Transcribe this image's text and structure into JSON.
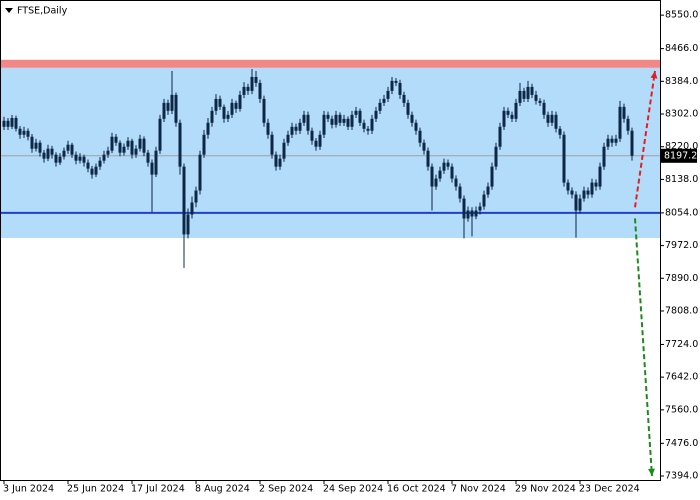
{
  "chart_data": {
    "type": "candlestick",
    "title": "FTSE,Daily",
    "categories": [
      "3 Jun 2024",
      null,
      null,
      null,
      null,
      null,
      null,
      null,
      null,
      null,
      null,
      null,
      null,
      null,
      null,
      null,
      "25 Jun 2024",
      null,
      null,
      null,
      null,
      null,
      null,
      null,
      null,
      null,
      null,
      null,
      null,
      null,
      null,
      null,
      "17 Jul 2024",
      null,
      null,
      null,
      null,
      null,
      null,
      null,
      null,
      null,
      null,
      null,
      null,
      null,
      null,
      null,
      "8 Aug 2024",
      null,
      null,
      null,
      null,
      null,
      null,
      null,
      null,
      null,
      null,
      null,
      null,
      null,
      null,
      null,
      "2 Sep 2024",
      null,
      null,
      null,
      null,
      null,
      null,
      null,
      null,
      null,
      null,
      null,
      null,
      null,
      null,
      null,
      "24 Sep 2024",
      null,
      null,
      null,
      null,
      null,
      null,
      null,
      null,
      null,
      null,
      null,
      null,
      null,
      null,
      null,
      "16 Oct 2024",
      null,
      null,
      null,
      null,
      null,
      null,
      null,
      null,
      null,
      null,
      null,
      null,
      null,
      null,
      null,
      "7 Nov 2024",
      null,
      null,
      null,
      null,
      null,
      null,
      null,
      null,
      null,
      null,
      null,
      null,
      null,
      null,
      null,
      "29 Nov 2024",
      null,
      null,
      null,
      null,
      null,
      null,
      null,
      null,
      null,
      null,
      null,
      null,
      null,
      null,
      null,
      "23 Dec 2024",
      null,
      null,
      null,
      null,
      null,
      null,
      null,
      null,
      null,
      null,
      null,
      null,
      null
    ],
    "ohlc": [
      [
        8270,
        8295,
        8262,
        8285
      ],
      [
        8285,
        8292,
        8262,
        8270
      ],
      [
        8270,
        8300,
        8264,
        8292
      ],
      [
        8292,
        8298,
        8258,
        8265
      ],
      [
        8265,
        8272,
        8240,
        8250
      ],
      [
        8250,
        8270,
        8242,
        8260
      ],
      [
        8260,
        8266,
        8236,
        8245
      ],
      [
        8245,
        8252,
        8205,
        8215
      ],
      [
        8215,
        8240,
        8208,
        8230
      ],
      [
        8230,
        8236,
        8195,
        8205
      ],
      [
        8205,
        8212,
        8180,
        8190
      ],
      [
        8190,
        8225,
        8184,
        8215
      ],
      [
        8215,
        8222,
        8190,
        8200
      ],
      [
        8200,
        8206,
        8170,
        8180
      ],
      [
        8180,
        8204,
        8174,
        8195
      ],
      [
        8195,
        8218,
        8188,
        8210
      ],
      [
        8210,
        8235,
        8202,
        8225
      ],
      [
        8225,
        8230,
        8192,
        8200
      ],
      [
        8200,
        8208,
        8176,
        8185
      ],
      [
        8185,
        8204,
        8178,
        8195
      ],
      [
        8195,
        8200,
        8170,
        8180
      ],
      [
        8180,
        8188,
        8156,
        8165
      ],
      [
        8165,
        8172,
        8140,
        8150
      ],
      [
        8150,
        8178,
        8144,
        8170
      ],
      [
        8170,
        8194,
        8162,
        8185
      ],
      [
        8185,
        8210,
        8178,
        8200
      ],
      [
        8200,
        8220,
        8192,
        8210
      ],
      [
        8210,
        8255,
        8204,
        8245
      ],
      [
        8245,
        8252,
        8222,
        8230
      ],
      [
        8230,
        8236,
        8196,
        8205
      ],
      [
        8205,
        8228,
        8198,
        8220
      ],
      [
        8220,
        8244,
        8212,
        8235
      ],
      [
        8235,
        8240,
        8190,
        8200
      ],
      [
        8200,
        8224,
        8192,
        8215
      ],
      [
        8215,
        8250,
        8208,
        8240
      ],
      [
        8240,
        8246,
        8196,
        8205
      ],
      [
        8205,
        8212,
        8170,
        8180
      ],
      [
        8180,
        8188,
        8056,
        8150
      ],
      [
        8150,
        8220,
        8144,
        8210
      ],
      [
        8210,
        8300,
        8202,
        8290
      ],
      [
        8290,
        8340,
        8282,
        8330
      ],
      [
        8330,
        8338,
        8300,
        8310
      ],
      [
        8310,
        8410,
        8302,
        8350
      ],
      [
        8350,
        8356,
        8270,
        8280
      ],
      [
        8280,
        8288,
        8150,
        8170
      ],
      [
        8170,
        8178,
        7916,
        8000
      ],
      [
        8000,
        8065,
        7990,
        8050
      ],
      [
        8050,
        8095,
        8040,
        8080
      ],
      [
        8080,
        8120,
        8068,
        8110
      ],
      [
        8110,
        8210,
        8100,
        8200
      ],
      [
        8200,
        8262,
        8192,
        8250
      ],
      [
        8250,
        8292,
        8240,
        8280
      ],
      [
        8280,
        8320,
        8270,
        8310
      ],
      [
        8310,
        8352,
        8300,
        8340
      ],
      [
        8340,
        8348,
        8312,
        8320
      ],
      [
        8320,
        8326,
        8280,
        8290
      ],
      [
        8290,
        8310,
        8282,
        8300
      ],
      [
        8300,
        8340,
        8292,
        8330
      ],
      [
        8330,
        8336,
        8305,
        8315
      ],
      [
        8315,
        8360,
        8308,
        8350
      ],
      [
        8350,
        8382,
        8342,
        8370
      ],
      [
        8370,
        8378,
        8350,
        8360
      ],
      [
        8360,
        8415,
        8352,
        8395
      ],
      [
        8395,
        8410,
        8370,
        8380
      ],
      [
        8380,
        8388,
        8330,
        8340
      ],
      [
        8340,
        8348,
        8270,
        8280
      ],
      [
        8280,
        8290,
        8240,
        8250
      ],
      [
        8250,
        8258,
        8190,
        8200
      ],
      [
        8200,
        8208,
        8160,
        8170
      ],
      [
        8170,
        8200,
        8162,
        8190
      ],
      [
        8190,
        8240,
        8182,
        8230
      ],
      [
        8230,
        8260,
        8222,
        8250
      ],
      [
        8250,
        8280,
        8242,
        8270
      ],
      [
        8270,
        8278,
        8250,
        8260
      ],
      [
        8260,
        8290,
        8252,
        8280
      ],
      [
        8280,
        8310,
        8272,
        8300
      ],
      [
        8300,
        8308,
        8250,
        8260
      ],
      [
        8260,
        8268,
        8225,
        8235
      ],
      [
        8235,
        8242,
        8210,
        8220
      ],
      [
        8220,
        8260,
        8212,
        8250
      ],
      [
        8250,
        8310,
        8242,
        8300
      ],
      [
        8300,
        8308,
        8282,
        8290
      ],
      [
        8290,
        8298,
        8266,
        8275
      ],
      [
        8275,
        8310,
        8268,
        8300
      ],
      [
        8300,
        8306,
        8272,
        8280
      ],
      [
        8280,
        8300,
        8272,
        8290
      ],
      [
        8290,
        8296,
        8262,
        8270
      ],
      [
        8270,
        8310,
        8262,
        8300
      ],
      [
        8300,
        8320,
        8292,
        8310
      ],
      [
        8310,
        8316,
        8272,
        8280
      ],
      [
        8280,
        8288,
        8256,
        8265
      ],
      [
        8265,
        8272,
        8250,
        8260
      ],
      [
        8260,
        8300,
        8252,
        8290
      ],
      [
        8290,
        8320,
        8282,
        8310
      ],
      [
        8310,
        8340,
        8302,
        8330
      ],
      [
        8330,
        8350,
        8322,
        8340
      ],
      [
        8340,
        8370,
        8332,
        8360
      ],
      [
        8360,
        8395,
        8352,
        8385
      ],
      [
        8385,
        8392,
        8372,
        8380
      ],
      [
        8380,
        8388,
        8340,
        8350
      ],
      [
        8350,
        8358,
        8320,
        8330
      ],
      [
        8330,
        8338,
        8290,
        8300
      ],
      [
        8300,
        8308,
        8270,
        8280
      ],
      [
        8280,
        8288,
        8250,
        8260
      ],
      [
        8260,
        8268,
        8220,
        8230
      ],
      [
        8230,
        8238,
        8200,
        8210
      ],
      [
        8210,
        8218,
        8160,
        8170
      ],
      [
        8170,
        8178,
        8060,
        8120
      ],
      [
        8120,
        8150,
        8112,
        8140
      ],
      [
        8140,
        8170,
        8132,
        8160
      ],
      [
        8160,
        8190,
        8152,
        8180
      ],
      [
        8180,
        8188,
        8162,
        8170
      ],
      [
        8170,
        8178,
        8130,
        8140
      ],
      [
        8140,
        8148,
        8110,
        8120
      ],
      [
        8120,
        8128,
        8080,
        8090
      ],
      [
        8090,
        8098,
        7990,
        8040
      ],
      [
        8040,
        8070,
        8032,
        8060
      ],
      [
        8060,
        8068,
        7995,
        8045
      ],
      [
        8045,
        8070,
        8038,
        8060
      ],
      [
        8060,
        8080,
        8050,
        8070
      ],
      [
        8070,
        8110,
        8062,
        8100
      ],
      [
        8100,
        8130,
        8092,
        8120
      ],
      [
        8120,
        8180,
        8112,
        8170
      ],
      [
        8170,
        8230,
        8162,
        8220
      ],
      [
        8220,
        8280,
        8212,
        8270
      ],
      [
        8270,
        8320,
        8262,
        8310
      ],
      [
        8310,
        8318,
        8292,
        8300
      ],
      [
        8300,
        8308,
        8282,
        8290
      ],
      [
        8290,
        8340,
        8282,
        8330
      ],
      [
        8330,
        8380,
        8322,
        8360
      ],
      [
        8360,
        8368,
        8332,
        8340
      ],
      [
        8340,
        8385,
        8332,
        8370
      ],
      [
        8370,
        8378,
        8342,
        8350
      ],
      [
        8350,
        8360,
        8326,
        8335
      ],
      [
        8335,
        8342,
        8322,
        8330
      ],
      [
        8330,
        8338,
        8290,
        8300
      ],
      [
        8300,
        8308,
        8270,
        8280
      ],
      [
        8280,
        8310,
        8272,
        8300
      ],
      [
        8300,
        8308,
        8256,
        8265
      ],
      [
        8265,
        8272,
        8240,
        8250
      ],
      [
        8250,
        8258,
        8120,
        8130
      ],
      [
        8130,
        8138,
        8100,
        8110
      ],
      [
        8110,
        8118,
        8090,
        8100
      ],
      [
        8100,
        8108,
        7992,
        8060
      ],
      [
        8060,
        8100,
        8052,
        8090
      ],
      [
        8090,
        8120,
        8082,
        8110
      ],
      [
        8110,
        8118,
        8090,
        8100
      ],
      [
        8100,
        8140,
        8092,
        8130
      ],
      [
        8130,
        8138,
        8110,
        8120
      ],
      [
        8120,
        8180,
        8112,
        8170
      ],
      [
        8170,
        8230,
        8162,
        8220
      ],
      [
        8220,
        8250,
        8212,
        8240
      ],
      [
        8240,
        8248,
        8220,
        8230
      ],
      [
        8230,
        8250,
        8222,
        8240
      ],
      [
        8240,
        8335,
        8232,
        8320
      ],
      [
        8320,
        8328,
        8280,
        8290
      ],
      [
        8290,
        8298,
        8250,
        8260
      ],
      [
        8260,
        8268,
        8185,
        8197.2
      ]
    ],
    "color": "#0d2847",
    "ylim": [
      7384,
      8588
    ],
    "yticks": [
      {
        "value": 8550,
        "label": "8550.0"
      },
      {
        "value": 8466,
        "label": "8466.0"
      },
      {
        "value": 8384,
        "label": "8384.0"
      },
      {
        "value": 8302,
        "label": "8302.0"
      },
      {
        "value": 8220,
        "label": "8220.0"
      },
      {
        "value": 8138,
        "label": "8138.0"
      },
      {
        "value": 8054,
        "label": "8054.0"
      },
      {
        "value": 7972,
        "label": "7972.0"
      },
      {
        "value": 7890,
        "label": "7890.0"
      },
      {
        "value": 7808,
        "label": "7808.0"
      },
      {
        "value": 7724,
        "label": "7724.0"
      },
      {
        "value": 7642,
        "label": "7642.0"
      },
      {
        "value": 7560,
        "label": "7560.0"
      },
      {
        "value": 7476,
        "label": "7476.0"
      },
      {
        "value": 7394,
        "label": "7394.0"
      }
    ],
    "current_price": 8197.2,
    "range_zone": {
      "values": [
        7991,
        8418
      ],
      "color": "#b3dcfa"
    },
    "resistance_zone": {
      "values": [
        8418,
        8438
      ],
      "color": "#f08888"
    },
    "support_line": {
      "value": 8054,
      "color": "#1f3fd0"
    },
    "arrows": [
      {
        "from": 8068,
        "to": 8410,
        "color": "#e02020"
      },
      {
        "from": 8040,
        "to": 7394,
        "color": "#1e8a1e"
      }
    ]
  }
}
